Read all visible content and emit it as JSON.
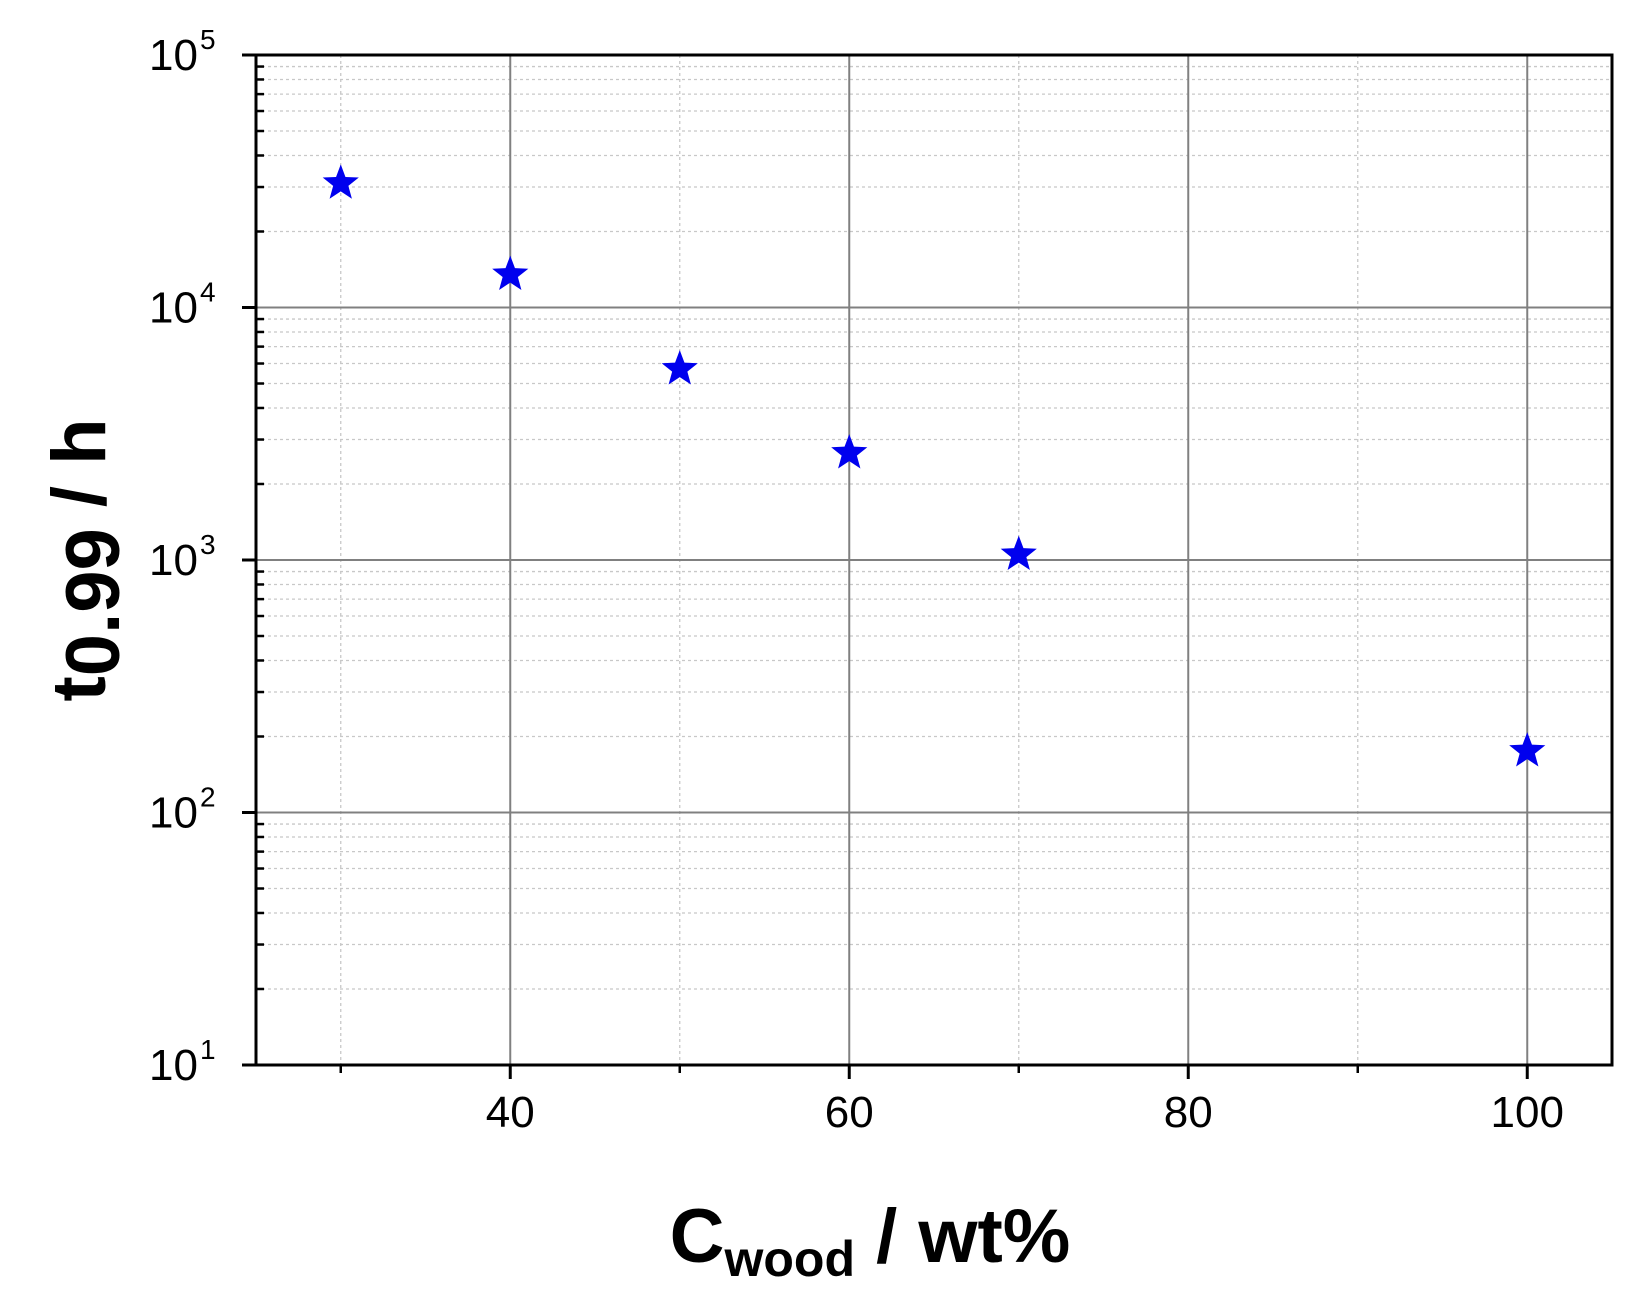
{
  "chart_data": {
    "type": "scatter",
    "xlabel": {
      "main": "C",
      "sub": "wood",
      "rest": " / wt%"
    },
    "ylabel": {
      "main": "t",
      "sub": "0.99",
      "rest": " / h"
    },
    "xlim": [
      25,
      105
    ],
    "ylim": [
      10,
      100000
    ],
    "yscale": "log",
    "grid": true,
    "x_ticks": [
      "40",
      "60",
      "80",
      "100"
    ],
    "y_ticks": [
      {
        "base": "10",
        "exp": "1"
      },
      {
        "base": "10",
        "exp": "2"
      },
      {
        "base": "10",
        "exp": "3"
      },
      {
        "base": "10",
        "exp": "4"
      },
      {
        "base": "10",
        "exp": "5"
      }
    ],
    "marker": "star",
    "marker_color": "#0000ee",
    "points": [
      {
        "x": 30,
        "y": 31000
      },
      {
        "x": 40,
        "y": 13500
      },
      {
        "x": 50,
        "y": 5700
      },
      {
        "x": 60,
        "y": 2650
      },
      {
        "x": 70,
        "y": 1050
      },
      {
        "x": 100,
        "y": 175
      }
    ]
  }
}
